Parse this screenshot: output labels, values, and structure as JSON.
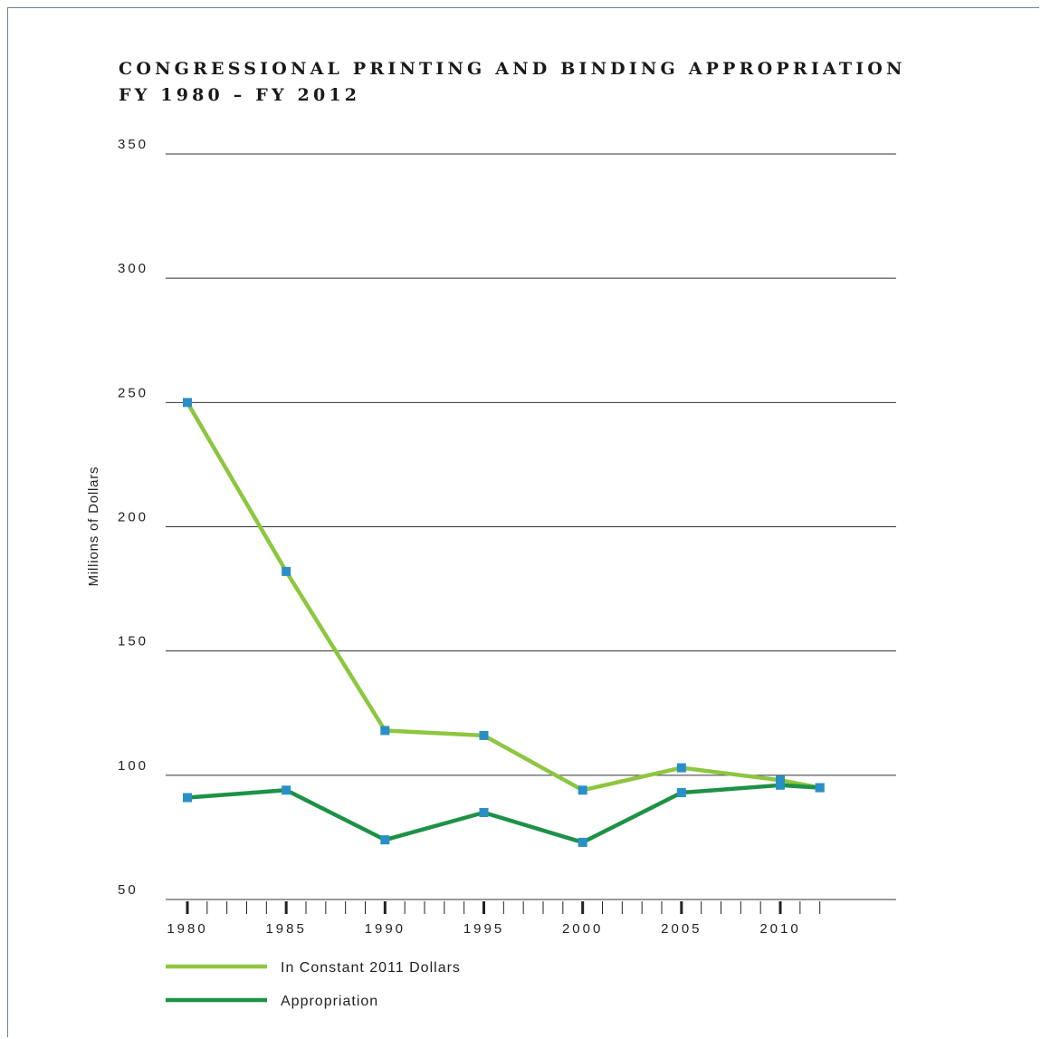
{
  "chart_data": {
    "type": "line",
    "title": "CONGRESSIONAL PRINTING AND BINDING APPROPRIATION",
    "subtitle": "FY 1980 – FY 2012",
    "xlabel": "",
    "ylabel": "Millions of Dollars",
    "xlim": [
      1980,
      2012
    ],
    "ylim": [
      50,
      350
    ],
    "yticks": [
      50,
      100,
      150,
      200,
      250,
      300,
      350
    ],
    "xtick_labels": [
      1980,
      1985,
      1990,
      1995,
      2000,
      2005,
      2010
    ],
    "grid": "horizontal",
    "legend_position": "bottom",
    "series": [
      {
        "name": "In Constant 2011 Dollars",
        "color": "#8dc63f",
        "x": [
          1980,
          1985,
          1990,
          1995,
          2000,
          2005,
          2010,
          2012
        ],
        "y": [
          250,
          182,
          118,
          116,
          94,
          103,
          98,
          95
        ]
      },
      {
        "name": "Appropriation",
        "color": "#1e9146",
        "x": [
          1980,
          1985,
          1990,
          1995,
          2000,
          2005,
          2010,
          2012
        ],
        "y": [
          91,
          94,
          74,
          85,
          73,
          93,
          96,
          95
        ]
      }
    ],
    "marker_color": "#2a8fc7"
  }
}
